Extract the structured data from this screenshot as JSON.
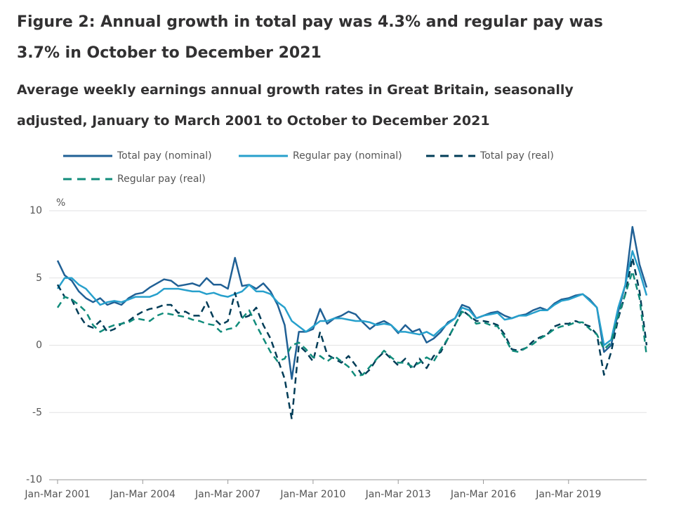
{
  "chart_data": {
    "type": "line",
    "title": "Figure 2: Annual growth in total pay was 4.3% and regular pay was 3.7% in October to December 2021",
    "subtitle": "Average weekly earnings annual growth rates in Great Britain, seasonally adjusted, January to March 2001 to October to December 2021",
    "y_unit": "%",
    "categories": [
      "Jan-Mar 2001",
      null,
      null,
      null,
      null,
      null,
      null,
      null,
      null,
      null,
      null,
      null,
      "Jan-Mar 2004",
      null,
      null,
      null,
      null,
      null,
      null,
      null,
      null,
      null,
      null,
      null,
      "Jan-Mar 2007",
      null,
      null,
      null,
      null,
      null,
      null,
      null,
      null,
      null,
      null,
      null,
      "Jan-Mar 2010",
      null,
      null,
      null,
      null,
      null,
      null,
      null,
      null,
      null,
      null,
      null,
      "Jan-Mar 2013",
      null,
      null,
      null,
      null,
      null,
      null,
      null,
      null,
      null,
      null,
      null,
      "Jan-Mar 2016",
      null,
      null,
      null,
      null,
      null,
      null,
      null,
      null,
      null,
      null,
      null,
      "Jan-Mar 2019",
      null,
      null,
      null,
      null,
      null,
      null,
      null,
      null,
      null,
      null,
      null
    ],
    "ylim": [
      -10,
      10
    ],
    "yticks": [
      -10,
      -5,
      0,
      5,
      10
    ],
    "grid": true,
    "series": [
      {
        "name": "Total pay (nominal)",
        "color": "#206095",
        "dashed": false,
        "values": [
          6.3,
          5.2,
          4.8,
          4.0,
          3.5,
          3.2,
          3.5,
          3.0,
          3.2,
          3.0,
          3.5,
          3.8,
          3.9,
          4.3,
          4.6,
          4.9,
          4.8,
          4.4,
          4.5,
          4.6,
          4.4,
          5.0,
          4.5,
          4.5,
          4.2,
          6.5,
          4.4,
          4.5,
          4.2,
          4.6,
          4.0,
          3.0,
          1.5,
          -2.5,
          1.0,
          1.0,
          1.2,
          2.7,
          1.6,
          2.0,
          2.2,
          2.5,
          2.3,
          1.7,
          1.2,
          1.6,
          1.8,
          1.5,
          0.9,
          1.5,
          1.0,
          1.2,
          0.2,
          0.5,
          1.0,
          1.7,
          2.0,
          3.0,
          2.8,
          2.0,
          2.2,
          2.4,
          2.5,
          2.2,
          2.0,
          2.2,
          2.3,
          2.6,
          2.8,
          2.6,
          3.1,
          3.4,
          3.5,
          3.7,
          3.8,
          3.4,
          2.8,
          -0.5,
          0.0,
          2.5,
          4.5,
          8.8,
          6.0,
          4.3
        ]
      },
      {
        "name": "Regular pay (nominal)",
        "color": "#27a0cc",
        "dashed": false,
        "values": [
          4.2,
          5.0,
          5.0,
          4.5,
          4.2,
          3.6,
          3.0,
          3.2,
          3.3,
          3.2,
          3.4,
          3.6,
          3.6,
          3.6,
          3.8,
          4.2,
          4.2,
          4.2,
          4.1,
          4.0,
          4.0,
          3.8,
          3.9,
          3.7,
          3.6,
          3.8,
          4.0,
          4.5,
          4.0,
          4.0,
          3.8,
          3.2,
          2.8,
          1.8,
          1.4,
          1.0,
          1.4,
          1.8,
          1.8,
          2.0,
          2.0,
          1.9,
          1.8,
          1.8,
          1.7,
          1.5,
          1.6,
          1.5,
          1.0,
          1.0,
          0.9,
          0.8,
          1.0,
          0.7,
          1.2,
          1.6,
          2.0,
          2.8,
          2.6,
          2.0,
          2.2,
          2.3,
          2.4,
          1.9,
          2.0,
          2.2,
          2.2,
          2.4,
          2.6,
          2.6,
          3.0,
          3.3,
          3.4,
          3.6,
          3.8,
          3.3,
          2.8,
          0.0,
          0.4,
          2.8,
          4.5,
          7.0,
          5.5,
          3.7
        ]
      },
      {
        "name": "Total pay (real)",
        "color": "#003c57",
        "dashed": true,
        "values": [
          4.5,
          3.6,
          3.4,
          2.3,
          1.5,
          1.3,
          1.8,
          1.0,
          1.2,
          1.6,
          1.8,
          2.2,
          2.5,
          2.7,
          2.8,
          3.0,
          3.0,
          2.4,
          2.5,
          2.2,
          2.2,
          3.2,
          2.0,
          1.5,
          1.8,
          3.9,
          2.0,
          2.2,
          2.8,
          1.5,
          0.5,
          -1.0,
          -2.5,
          -5.5,
          0.0,
          -0.5,
          -1.2,
          1.0,
          -0.7,
          -1.0,
          -1.3,
          -0.8,
          -1.5,
          -2.3,
          -1.8,
          -1.0,
          -0.5,
          -1.0,
          -1.5,
          -1.0,
          -1.8,
          -1.0,
          -1.7,
          -0.8,
          -0.5,
          0.5,
          1.5,
          2.6,
          2.2,
          1.8,
          1.8,
          1.7,
          1.5,
          0.8,
          -0.3,
          -0.4,
          -0.2,
          0.3,
          0.6,
          0.8,
          1.4,
          1.6,
          1.6,
          1.8,
          1.6,
          1.4,
          0.8,
          -2.2,
          -0.5,
          2.0,
          3.8,
          6.5,
          4.0,
          0.0
        ]
      },
      {
        "name": "Regular pay (real)",
        "color": "#118c7b",
        "dashed": true,
        "values": [
          2.8,
          3.6,
          3.4,
          3.0,
          2.5,
          1.5,
          1.0,
          1.3,
          1.5,
          1.6,
          1.7,
          2.0,
          1.9,
          1.8,
          2.2,
          2.4,
          2.3,
          2.2,
          2.1,
          1.9,
          1.8,
          1.6,
          1.5,
          1.0,
          1.2,
          1.3,
          2.0,
          2.6,
          1.5,
          0.5,
          -0.5,
          -1.2,
          -1.0,
          0.0,
          0.2,
          -0.3,
          -0.9,
          -0.8,
          -1.2,
          -0.8,
          -1.2,
          -1.6,
          -2.3,
          -2.2,
          -1.6,
          -1.0,
          -0.4,
          -0.9,
          -1.3,
          -1.3,
          -1.6,
          -1.3,
          -0.9,
          -1.2,
          -0.3,
          0.5,
          1.5,
          2.5,
          2.2,
          1.6,
          1.7,
          1.5,
          1.4,
          0.6,
          -0.4,
          -0.5,
          -0.2,
          0.1,
          0.5,
          0.8,
          1.2,
          1.4,
          1.5,
          1.7,
          1.7,
          1.2,
          0.8,
          -0.3,
          0.2,
          2.2,
          3.8,
          5.5,
          3.5,
          -0.8
        ]
      }
    ]
  }
}
